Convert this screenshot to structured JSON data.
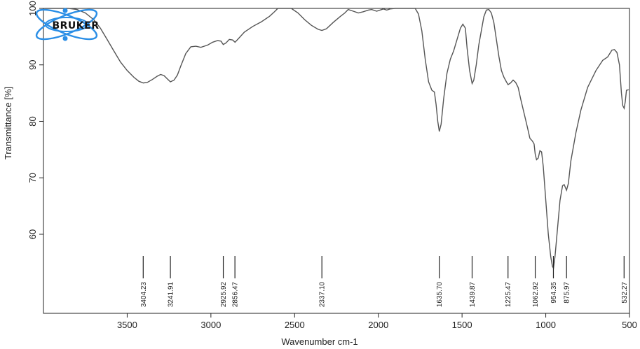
{
  "chart_data": {
    "type": "line",
    "xlabel": "Wavenumber cm-1",
    "ylabel": "Transmittance [%]",
    "xlim": [
      4000,
      500
    ],
    "ylim": [
      46,
      100
    ],
    "x_reversed": true,
    "xticks": [
      3500,
      3000,
      2500,
      2000,
      1500,
      1000,
      500
    ],
    "yticks": [
      60,
      70,
      80,
      90,
      100
    ],
    "grid": false,
    "logo_text": "BRUKER",
    "peak_labels": [
      "3404.23",
      "3241.91",
      "2925.92",
      "2856.47",
      "2337.10",
      "1635.70",
      "1439.87",
      "1225.47",
      "1062.92",
      "954.35",
      "875.97",
      "532.27"
    ],
    "peaks": [
      3404.23,
      3241.91,
      2925.92,
      2856.47,
      2337.1,
      1635.7,
      1439.87,
      1225.47,
      1062.92,
      954.35,
      875.97,
      532.27
    ],
    "series": [
      {
        "color": "#555555",
        "points": [
          [
            3990,
            100
          ],
          [
            3850,
            100
          ],
          [
            3800,
            99.8
          ],
          [
            3750,
            99.2
          ],
          [
            3700,
            98
          ],
          [
            3660,
            96.5
          ],
          [
            3620,
            94.5
          ],
          [
            3580,
            92.5
          ],
          [
            3540,
            90.5
          ],
          [
            3500,
            89
          ],
          [
            3460,
            87.8
          ],
          [
            3430,
            87.1
          ],
          [
            3404,
            86.8
          ],
          [
            3380,
            86.9
          ],
          [
            3350,
            87.4
          ],
          [
            3320,
            88
          ],
          [
            3300,
            88.3
          ],
          [
            3280,
            88.1
          ],
          [
            3260,
            87.5
          ],
          [
            3242,
            87
          ],
          [
            3220,
            87.3
          ],
          [
            3200,
            88.2
          ],
          [
            3180,
            89.8
          ],
          [
            3150,
            92
          ],
          [
            3120,
            93.2
          ],
          [
            3090,
            93.3
          ],
          [
            3060,
            93.1
          ],
          [
            3020,
            93.5
          ],
          [
            2990,
            94
          ],
          [
            2960,
            94.3
          ],
          [
            2940,
            94.2
          ],
          [
            2926,
            93.6
          ],
          [
            2910,
            93.9
          ],
          [
            2890,
            94.5
          ],
          [
            2870,
            94.4
          ],
          [
            2856,
            94
          ],
          [
            2840,
            94.5
          ],
          [
            2800,
            95.8
          ],
          [
            2750,
            96.8
          ],
          [
            2700,
            97.6
          ],
          [
            2650,
            98.6
          ],
          [
            2620,
            99.4
          ],
          [
            2600,
            100
          ],
          [
            2520,
            100
          ],
          [
            2480,
            99.2
          ],
          [
            2440,
            98
          ],
          [
            2400,
            97
          ],
          [
            2360,
            96.3
          ],
          [
            2337,
            96.1
          ],
          [
            2310,
            96.4
          ],
          [
            2270,
            97.5
          ],
          [
            2230,
            98.5
          ],
          [
            2200,
            99.2
          ],
          [
            2180,
            99.8
          ],
          [
            2150,
            99.5
          ],
          [
            2120,
            99.2
          ],
          [
            2090,
            99.4
          ],
          [
            2060,
            99.7
          ],
          [
            2040,
            99.8
          ],
          [
            2010,
            99.5
          ],
          [
            1990,
            99.7
          ],
          [
            1970,
            99.9
          ],
          [
            1950,
            99.7
          ],
          [
            1930,
            99.9
          ],
          [
            1900,
            100
          ],
          [
            1780,
            100
          ],
          [
            1760,
            99
          ],
          [
            1740,
            96
          ],
          [
            1720,
            91
          ],
          [
            1700,
            87
          ],
          [
            1680,
            85.5
          ],
          [
            1665,
            85.2
          ],
          [
            1655,
            83
          ],
          [
            1645,
            80
          ],
          [
            1636,
            78.2
          ],
          [
            1625,
            79.5
          ],
          [
            1610,
            84
          ],
          [
            1590,
            88.5
          ],
          [
            1570,
            91
          ],
          [
            1550,
            92.5
          ],
          [
            1530,
            94.5
          ],
          [
            1510,
            96.5
          ],
          [
            1495,
            97.2
          ],
          [
            1480,
            96.5
          ],
          [
            1470,
            93
          ],
          [
            1455,
            89
          ],
          [
            1440,
            86.7
          ],
          [
            1430,
            87.3
          ],
          [
            1415,
            90
          ],
          [
            1400,
            93.5
          ],
          [
            1385,
            96
          ],
          [
            1370,
            98.5
          ],
          [
            1355,
            99.7
          ],
          [
            1340,
            99.8
          ],
          [
            1325,
            99.2
          ],
          [
            1310,
            97.5
          ],
          [
            1295,
            94.5
          ],
          [
            1280,
            91.5
          ],
          [
            1265,
            89
          ],
          [
            1250,
            87.8
          ],
          [
            1235,
            87
          ],
          [
            1225,
            86.5
          ],
          [
            1210,
            86.8
          ],
          [
            1195,
            87.3
          ],
          [
            1180,
            86.9
          ],
          [
            1165,
            86
          ],
          [
            1150,
            84
          ],
          [
            1130,
            81.5
          ],
          [
            1110,
            79
          ],
          [
            1095,
            77
          ],
          [
            1080,
            76.5
          ],
          [
            1070,
            76
          ],
          [
            1063,
            74.2
          ],
          [
            1055,
            73.2
          ],
          [
            1045,
            73.5
          ],
          [
            1035,
            74.8
          ],
          [
            1025,
            74.6
          ],
          [
            1015,
            72
          ],
          [
            1000,
            66
          ],
          [
            985,
            60
          ],
          [
            970,
            56
          ],
          [
            960,
            54.3
          ],
          [
            954,
            54
          ],
          [
            945,
            56
          ],
          [
            930,
            61
          ],
          [
            915,
            66
          ],
          [
            900,
            68.6
          ],
          [
            890,
            68.8
          ],
          [
            876,
            67.8
          ],
          [
            865,
            69
          ],
          [
            850,
            73
          ],
          [
            820,
            78
          ],
          [
            790,
            82
          ],
          [
            750,
            86
          ],
          [
            700,
            89
          ],
          [
            660,
            90.8
          ],
          [
            630,
            91.4
          ],
          [
            605,
            92.6
          ],
          [
            590,
            92.7
          ],
          [
            575,
            92.2
          ],
          [
            560,
            90
          ],
          [
            548,
            85
          ],
          [
            540,
            82.8
          ],
          [
            532,
            82.3
          ],
          [
            525,
            83.5
          ],
          [
            518,
            85.5
          ],
          [
            505,
            85.6
          ]
        ]
      }
    ]
  }
}
